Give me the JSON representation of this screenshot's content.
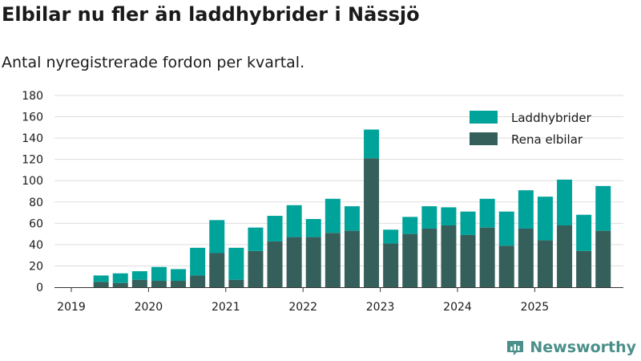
{
  "header": {
    "title": "Elbilar nu fler än laddhybrider i Nässjö",
    "subtitle": "Antal nyregistrerade fordon per kvartal."
  },
  "brand": {
    "name": "Newsworthy",
    "icon": "newsworthy-logo-icon"
  },
  "colors": {
    "elbilar": "#355f5b",
    "laddhybrider": "#00a39a",
    "grid": "#dddddd",
    "axis": "#333333"
  },
  "chart_data": {
    "type": "bar",
    "stacked": true,
    "x_tick_labels": [
      "2019",
      "2020",
      "2021",
      "2022",
      "2023",
      "2024",
      "2025"
    ],
    "categories": [
      "2019 Q2",
      "2019 Q3",
      "2019 Q4",
      "2020 Q1",
      "2020 Q2",
      "2020 Q3",
      "2020 Q4",
      "2021 Q1",
      "2021 Q2",
      "2021 Q3",
      "2021 Q4",
      "2022 Q1",
      "2022 Q2",
      "2022 Q3",
      "2022 Q4",
      "2023 Q1",
      "2023 Q2",
      "2023 Q3",
      "2023 Q4",
      "2024 Q1",
      "2024 Q2",
      "2024 Q3",
      "2024 Q4",
      "2025 Q1",
      "2025 Q2",
      "2025 Q3",
      "2025 Q4"
    ],
    "series": [
      {
        "name": "Rena elbilar",
        "values": [
          5,
          4,
          7,
          6,
          6,
          11,
          32,
          7,
          34,
          43,
          47,
          47,
          51,
          53,
          121,
          41,
          50,
          55,
          58,
          49,
          56,
          39,
          55,
          44,
          58,
          34,
          53
        ]
      },
      {
        "name": "Laddhybrider",
        "values": [
          6,
          9,
          8,
          13,
          11,
          26,
          31,
          30,
          22,
          24,
          30,
          17,
          32,
          23,
          27,
          13,
          16,
          21,
          17,
          22,
          27,
          32,
          36,
          41,
          43,
          34,
          42
        ]
      }
    ],
    "ylim": [
      0,
      180
    ],
    "y_ticks": [
      0,
      20,
      40,
      60,
      80,
      100,
      120,
      140,
      160,
      180
    ],
    "grid": true,
    "legend_position": "top-right",
    "legend": [
      "Laddhybrider",
      "Rena elbilar"
    ]
  }
}
